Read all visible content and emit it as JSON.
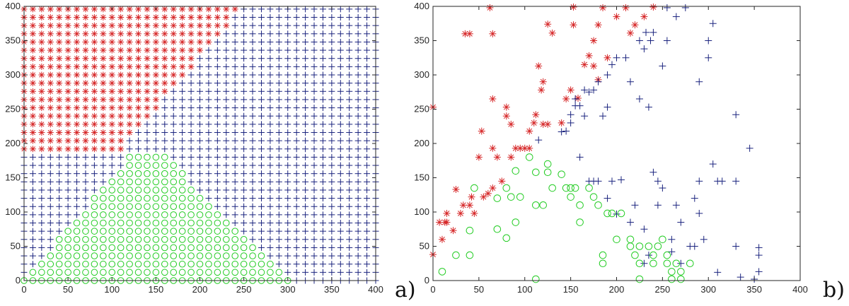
{
  "chart_data": [
    {
      "panel": "a)",
      "type": "scatter",
      "title": "",
      "xlabel": "",
      "ylabel": "",
      "xlim": [
        0,
        400
      ],
      "ylim": [
        0,
        400
      ],
      "xticks": [
        "0",
        "50",
        "100",
        "150",
        "200",
        "250",
        "300",
        "350",
        "400"
      ],
      "yticks": [
        "0",
        "50",
        "100",
        "150",
        "200",
        "250",
        "300",
        "350",
        "400"
      ],
      "grid": false,
      "dense_grid": {
        "spacing_x": 10,
        "spacing_y": 12,
        "classes": [
          {
            "marker": "asterisk",
            "color": "#d62728",
            "region": "y >= 26 + 1.5*x and y >= 190"
          },
          {
            "marker": "circle",
            "color": "#22cc22",
            "region": "y <= 1.5*x and y <= 180 and y <= 1.3*(300 - x)"
          },
          {
            "marker": "plus",
            "color": "#1a237e",
            "region": "otherwise"
          }
        ]
      }
    },
    {
      "panel": "b)",
      "type": "scatter",
      "title": "",
      "xlabel": "",
      "ylabel": "",
      "xlim": [
        0,
        400
      ],
      "ylim": [
        0,
        400
      ],
      "xticks": [
        "0",
        "50",
        "100",
        "150",
        "200",
        "250",
        "300",
        "350",
        "400"
      ],
      "yticks": [
        "0",
        "50",
        "100",
        "150",
        "200",
        "250",
        "300",
        "350",
        "400"
      ],
      "grid": false,
      "series": [
        {
          "marker": "asterisk",
          "color": "#d62728",
          "points": [
            [
              0,
              38
            ],
            [
              0,
              253
            ],
            [
              7,
              85
            ],
            [
              10,
              60
            ],
            [
              13,
              85
            ],
            [
              15,
              85
            ],
            [
              15,
              98
            ],
            [
              22,
              73
            ],
            [
              25,
              133
            ],
            [
              30,
              98
            ],
            [
              33,
              110
            ],
            [
              35,
              360
            ],
            [
              40,
              360
            ],
            [
              40,
              110
            ],
            [
              42,
              122
            ],
            [
              45,
              98
            ],
            [
              50,
              180
            ],
            [
              53,
              218
            ],
            [
              55,
              122
            ],
            [
              60,
              127
            ],
            [
              62,
              398
            ],
            [
              65,
              265
            ],
            [
              65,
              360
            ],
            [
              65,
              135
            ],
            [
              65,
              193
            ],
            [
              70,
              180
            ],
            [
              75,
              145
            ],
            [
              80,
              240
            ],
            [
              80,
              253
            ],
            [
              85,
              228
            ],
            [
              85,
              180
            ],
            [
              90,
              193
            ],
            [
              95,
              193
            ],
            [
              100,
              193
            ],
            [
              105,
              218
            ],
            [
              105,
              193
            ],
            [
              110,
              230
            ],
            [
              112,
              242
            ],
            [
              115,
              313
            ],
            [
              118,
              278
            ],
            [
              120,
              290
            ],
            [
              120,
              228
            ],
            [
              125,
              228
            ],
            [
              125,
              374
            ],
            [
              130,
              361
            ],
            [
              140,
              230
            ],
            [
              145,
              265
            ],
            [
              150,
              278
            ],
            [
              153,
              373
            ],
            [
              153,
              399
            ],
            [
              158,
              266
            ],
            [
              165,
              315
            ],
            [
              170,
              328
            ],
            [
              175,
              313
            ],
            [
              175,
              350
            ],
            [
              180,
              373
            ],
            [
              180,
              293
            ],
            [
              185,
              398
            ],
            [
              190,
              325
            ],
            [
              200,
              385
            ],
            [
              210,
              398
            ],
            [
              215,
              361
            ],
            [
              220,
              373
            ],
            [
              230,
              385
            ],
            [
              240,
              399
            ]
          ]
        },
        {
          "marker": "plus",
          "color": "#1a237e",
          "points": [
            [
              115,
              205
            ],
            [
              140,
              217
            ],
            [
              145,
              218
            ],
            [
              150,
              230
            ],
            [
              150,
              242
            ],
            [
              155,
              255
            ],
            [
              155,
              265
            ],
            [
              160,
              255
            ],
            [
              165,
              278
            ],
            [
              165,
              240
            ],
            [
              170,
              275
            ],
            [
              175,
              278
            ],
            [
              180,
              290
            ],
            [
              185,
              240
            ],
            [
              190,
              253
            ],
            [
              190,
              300
            ],
            [
              195,
              315
            ],
            [
              200,
              325
            ],
            [
              210,
              325
            ],
            [
              215,
              290
            ],
            [
              225,
              265
            ],
            [
              225,
              350
            ],
            [
              230,
              338
            ],
            [
              232,
              362
            ],
            [
              235,
              253
            ],
            [
              237,
              350
            ],
            [
              240,
              362
            ],
            [
              255,
              350
            ],
            [
              255,
              398
            ],
            [
              265,
              385
            ],
            [
              275,
              398
            ],
            [
              250,
              313
            ],
            [
              290,
              290
            ],
            [
              300,
              325
            ],
            [
              300,
              350
            ],
            [
              305,
              375
            ],
            [
              160,
              180
            ],
            [
              170,
              145
            ],
            [
              175,
              145
            ],
            [
              180,
              145
            ],
            [
              190,
              120
            ],
            [
              195,
              145
            ],
            [
              200,
              97
            ],
            [
              205,
              147
            ],
            [
              215,
              85
            ],
            [
              220,
              110
            ],
            [
              230,
              25
            ],
            [
              235,
              37
            ],
            [
              240,
              158
            ],
            [
              245,
              145
            ],
            [
              250,
              135
            ],
            [
              260,
              60
            ],
            [
              265,
              110
            ],
            [
              270,
              85
            ],
            [
              280,
              50
            ],
            [
              285,
              50
            ],
            [
              290,
              145
            ],
            [
              290,
              98
            ],
            [
              305,
              170
            ],
            [
              310,
              145
            ],
            [
              310,
              12
            ],
            [
              315,
              145
            ],
            [
              330,
              242
            ],
            [
              330,
              50
            ],
            [
              330,
              145
            ],
            [
              335,
              5
            ],
            [
              345,
              193
            ],
            [
              350,
              2
            ],
            [
              355,
              48
            ],
            [
              355,
              37
            ],
            [
              355,
              13
            ],
            [
              230,
              75
            ],
            [
              245,
              110
            ],
            [
              260,
              42
            ],
            [
              270,
              25
            ],
            [
              285,
              120
            ],
            [
              295,
              60
            ]
          ]
        },
        {
          "marker": "circle",
          "color": "#22cc22",
          "points": [
            [
              10,
              13
            ],
            [
              25,
              37
            ],
            [
              40,
              37
            ],
            [
              40,
              73
            ],
            [
              45,
              135
            ],
            [
              70,
              75
            ],
            [
              70,
              120
            ],
            [
              80,
              62
            ],
            [
              80,
              135
            ],
            [
              85,
              122
            ],
            [
              90,
              160
            ],
            [
              90,
              85
            ],
            [
              95,
              122
            ],
            [
              105,
              180
            ],
            [
              112,
              110
            ],
            [
              112,
              158
            ],
            [
              120,
              110
            ],
            [
              125,
              170
            ],
            [
              125,
              158
            ],
            [
              130,
              135
            ],
            [
              140,
              155
            ],
            [
              145,
              135
            ],
            [
              150,
              135
            ],
            [
              150,
              122
            ],
            [
              155,
              135
            ],
            [
              160,
              110
            ],
            [
              160,
              85
            ],
            [
              170,
              135
            ],
            [
              175,
              122
            ],
            [
              180,
              110
            ],
            [
              185,
              25
            ],
            [
              185,
              37
            ],
            [
              190,
              98
            ],
            [
              195,
              98
            ],
            [
              200,
              60
            ],
            [
              205,
              98
            ],
            [
              215,
              60
            ],
            [
              215,
              50
            ],
            [
              220,
              37
            ],
            [
              225,
              50
            ],
            [
              225,
              25
            ],
            [
              225,
              2
            ],
            [
              235,
              50
            ],
            [
              240,
              25
            ],
            [
              240,
              37
            ],
            [
              245,
              50
            ],
            [
              250,
              60
            ],
            [
              255,
              37
            ],
            [
              255,
              25
            ],
            [
              260,
              2
            ],
            [
              260,
              13
            ],
            [
              265,
              25
            ],
            [
              270,
              2
            ],
            [
              270,
              13
            ],
            [
              280,
              25
            ],
            [
              112,
              2
            ]
          ]
        }
      ]
    }
  ]
}
